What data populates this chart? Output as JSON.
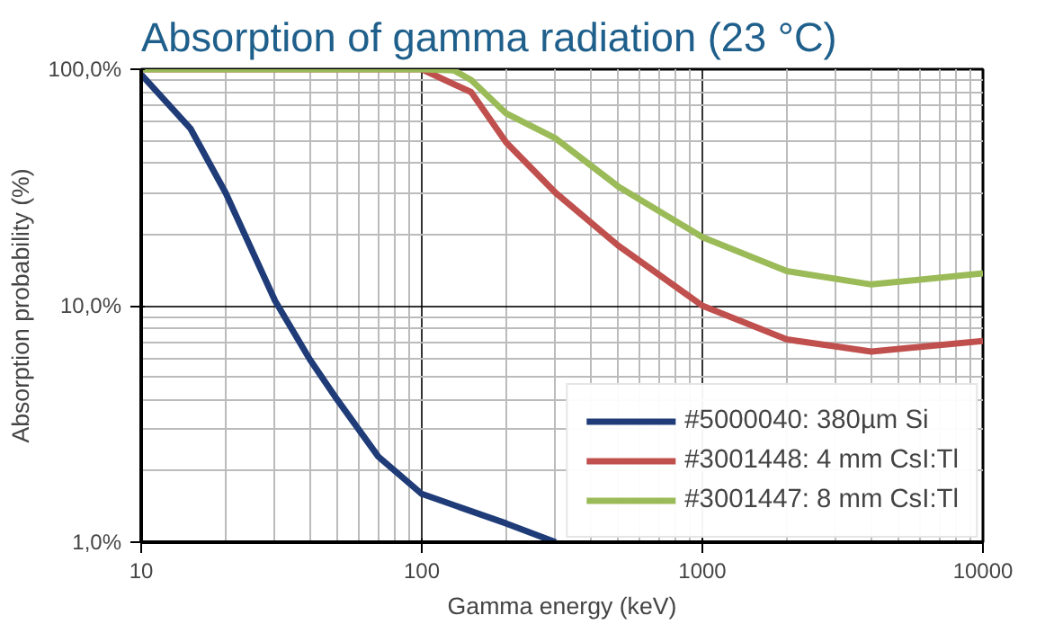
{
  "chart_data": {
    "type": "line",
    "title": "Absorption  of gamma radiation (23 °C)",
    "xlabel": "Gamma energy (keV)",
    "ylabel": "Absorption probability (%)",
    "log": "xy",
    "grid": true,
    "legend": "bottom right",
    "xlim": [
      10,
      10000
    ],
    "ylim": [
      1,
      100
    ],
    "xticks": [
      10,
      100,
      1000,
      10000
    ],
    "yticks": [
      {
        "value": 1,
        "label": "1,0%"
      },
      {
        "value": 10,
        "label": "10,0%"
      },
      {
        "value": 100,
        "label": "100,0%"
      }
    ],
    "series": [
      {
        "name": "#5000040: 380µm Si",
        "color": "#1f3c78",
        "x": [
          10,
          15,
          20,
          30,
          40,
          50,
          70,
          100,
          200,
          300
        ],
        "values": [
          95,
          56,
          30,
          10.5,
          5.9,
          4,
          2.3,
          1.6,
          1.2,
          1.0
        ]
      },
      {
        "name": "#3001448: 4 mm CsI:Tl",
        "color": "#c0504d",
        "x": [
          10,
          100,
          150,
          200,
          300,
          500,
          1000,
          2000,
          4000,
          10000
        ],
        "values": [
          100,
          100,
          80,
          49,
          30,
          18,
          10,
          7.2,
          6.4,
          7.1
        ]
      },
      {
        "name": "#3001447: 8 mm CsI:Tl",
        "color": "#9bbb59",
        "x": [
          10,
          100,
          130,
          150,
          200,
          300,
          500,
          1000,
          2000,
          4000,
          10000
        ],
        "values": [
          100,
          100,
          99,
          90,
          65,
          51,
          32,
          19.5,
          14,
          12.3,
          13.7
        ]
      }
    ]
  }
}
